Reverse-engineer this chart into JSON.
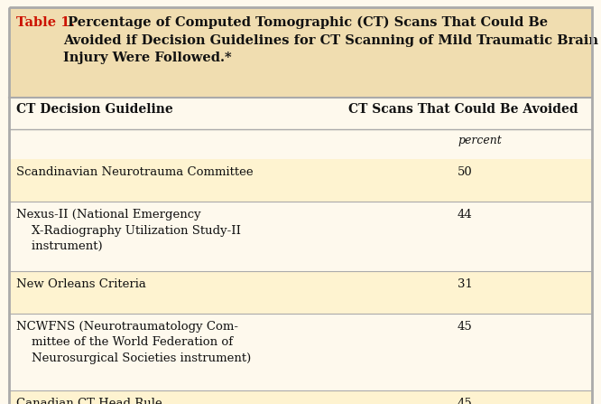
{
  "title_prefix": "Table 1.",
  "title_rest": " Percentage of Computed Tomographic (CT) Scans That Could Be\nAvoided if Decision Guidelines for CT Scanning of Mild Traumatic Brain\nInjury Were Followed.*",
  "col1_header": "CT Decision Guideline",
  "col2_header": "CT Scans That Could Be Avoided",
  "col2_subheader": "percent",
  "rows": [
    {
      "guideline_lines": [
        "Scandinavian Neurotrauma Committee"
      ],
      "value": "50"
    },
    {
      "guideline_lines": [
        "Nexus-II (National Emergency",
        "    X-Radiography Utilization Study-II",
        "    instrument)"
      ],
      "value": "44"
    },
    {
      "guideline_lines": [
        "New Orleans Criteria"
      ],
      "value": "31"
    },
    {
      "guideline_lines": [
        "NCWFNS (Neurotraumatology Com-",
        "    mittee of the World Federation of",
        "    Neurosurgical Societies instrument)"
      ],
      "value": "45"
    },
    {
      "guideline_lines": [
        "Canadian CT Head Rule"
      ],
      "value": "45"
    }
  ],
  "bg_color": "#fffef7",
  "title_bg_color": "#f0ddb0",
  "body_bg_color": "#fef9ed",
  "row_shade_color": "#fef3d0",
  "row_plain_color": "#fef9ed",
  "border_color": "#aaaaaa",
  "title_color_prefix": "#cc1100",
  "title_color_rest": "#111111",
  "header_text_color": "#111111",
  "row_text_color": "#111111",
  "font_size_title": 10.5,
  "font_size_header": 10.0,
  "font_size_body": 9.5,
  "font_size_subheader": 9.0
}
